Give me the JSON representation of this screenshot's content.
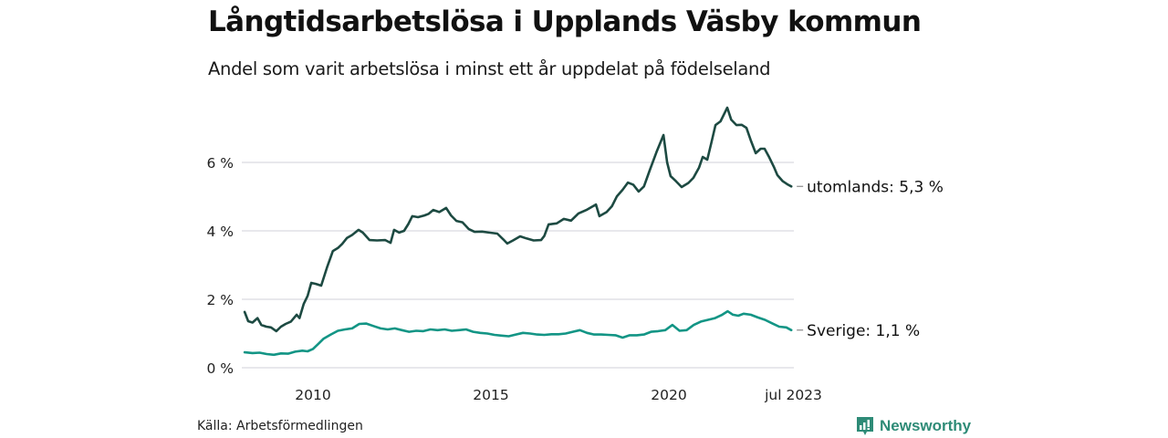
{
  "header": {
    "title": "Långtidsarbetslösa i Upplands Väsby kommun",
    "subtitle": "Andel som varit arbetslösa i minst ett år uppdelat på födelseland"
  },
  "footer": {
    "source": "Källa: Arbetsförmedlingen",
    "brand": "Newsworthy"
  },
  "colors": {
    "utomlands": "#1d4a42",
    "sverige": "#139585",
    "grid": "#e1e1e6",
    "brand": "#2e8b77"
  },
  "chart_data": {
    "type": "line",
    "title": "Långtidsarbetslösa i Upplands Väsby kommun",
    "subtitle": "Andel som varit arbetslösa i minst ett år uppdelat på födelseland",
    "xlabel": "",
    "ylabel": "",
    "xlim": [
      2008.0,
      2023.5
    ],
    "ylim": [
      0,
      7.7
    ],
    "grid": true,
    "y_ticks": [
      {
        "value": 0,
        "label": "0 %"
      },
      {
        "value": 2,
        "label": "2 %"
      },
      {
        "value": 4,
        "label": "4 %"
      },
      {
        "value": 6,
        "label": "6 %"
      }
    ],
    "x_ticks": [
      {
        "value": 2010.0,
        "label": "2010"
      },
      {
        "value": 2015.0,
        "label": "2015"
      },
      {
        "value": 2020.0,
        "label": "2020"
      },
      {
        "value": 2023.5,
        "label": "jul 2023"
      }
    ],
    "legend": "end-of-line labels",
    "series": [
      {
        "name": "utomlands",
        "end_label": "utomlands: 5,3 %",
        "x": [
          2008.08,
          2008.18,
          2008.3,
          2008.44,
          2008.55,
          2008.69,
          2008.82,
          2008.97,
          2009.1,
          2009.23,
          2009.38,
          2009.54,
          2009.62,
          2009.74,
          2009.85,
          2009.95,
          2010.08,
          2010.23,
          2010.4,
          2010.56,
          2010.7,
          2010.82,
          2010.95,
          2011.1,
          2011.28,
          2011.4,
          2011.59,
          2011.8,
          2012.03,
          2012.18,
          2012.28,
          2012.42,
          2012.56,
          2012.68,
          2012.79,
          2012.95,
          2013.13,
          2013.25,
          2013.38,
          2013.55,
          2013.74,
          2013.88,
          2014.03,
          2014.2,
          2014.38,
          2014.54,
          2014.75,
          2014.95,
          2015.18,
          2015.35,
          2015.46,
          2015.62,
          2015.82,
          2016.0,
          2016.2,
          2016.41,
          2016.5,
          2016.62,
          2016.85,
          2017.05,
          2017.25,
          2017.46,
          2017.7,
          2017.95,
          2018.05,
          2018.25,
          2018.4,
          2018.54,
          2018.7,
          2018.85,
          2019.0,
          2019.15,
          2019.3,
          2019.46,
          2019.65,
          2019.85,
          2019.95,
          2020.05,
          2020.2,
          2020.36,
          2020.55,
          2020.69,
          2020.85,
          2020.95,
          2021.08,
          2021.2,
          2021.31,
          2021.45,
          2021.64,
          2021.75,
          2021.9,
          2022.05,
          2022.18,
          2022.3,
          2022.44,
          2022.58,
          2022.69,
          2022.82,
          2022.95,
          2023.05,
          2023.2,
          2023.35,
          2023.44
        ],
        "values": [
          1.63,
          1.36,
          1.32,
          1.45,
          1.25,
          1.2,
          1.18,
          1.07,
          1.2,
          1.28,
          1.35,
          1.55,
          1.45,
          1.87,
          2.1,
          2.48,
          2.45,
          2.4,
          2.95,
          3.41,
          3.5,
          3.62,
          3.79,
          3.88,
          4.03,
          3.95,
          3.73,
          3.72,
          3.73,
          3.65,
          4.03,
          3.95,
          4.0,
          4.2,
          4.43,
          4.4,
          4.45,
          4.5,
          4.61,
          4.55,
          4.67,
          4.45,
          4.29,
          4.25,
          4.05,
          3.97,
          3.98,
          3.95,
          3.92,
          3.75,
          3.63,
          3.72,
          3.84,
          3.78,
          3.72,
          3.73,
          3.85,
          4.19,
          4.22,
          4.35,
          4.3,
          4.51,
          4.62,
          4.77,
          4.43,
          4.55,
          4.72,
          5.01,
          5.2,
          5.41,
          5.35,
          5.15,
          5.3,
          5.76,
          6.3,
          6.8,
          6.0,
          5.6,
          5.45,
          5.28,
          5.4,
          5.55,
          5.85,
          6.16,
          6.08,
          6.6,
          7.09,
          7.2,
          7.6,
          7.25,
          7.09,
          7.1,
          7.01,
          6.65,
          6.27,
          6.4,
          6.4,
          6.15,
          5.87,
          5.63,
          5.45,
          5.35,
          5.3
        ]
      },
      {
        "name": "Sverige",
        "end_label": "Sverige: 1,1 %",
        "x": [
          2008.08,
          2008.3,
          2008.5,
          2008.7,
          2008.9,
          2009.1,
          2009.3,
          2009.5,
          2009.7,
          2009.85,
          2010.0,
          2010.15,
          2010.3,
          2010.5,
          2010.7,
          2010.9,
          2011.1,
          2011.3,
          2011.5,
          2011.7,
          2011.9,
          2012.1,
          2012.3,
          2012.5,
          2012.7,
          2012.9,
          2013.1,
          2013.3,
          2013.5,
          2013.7,
          2013.9,
          2014.1,
          2014.3,
          2014.5,
          2014.7,
          2014.9,
          2015.1,
          2015.3,
          2015.5,
          2015.7,
          2015.9,
          2016.1,
          2016.3,
          2016.5,
          2016.7,
          2016.9,
          2017.1,
          2017.3,
          2017.5,
          2017.7,
          2017.9,
          2018.1,
          2018.3,
          2018.5,
          2018.7,
          2018.9,
          2019.1,
          2019.3,
          2019.5,
          2019.7,
          2019.9,
          2020.1,
          2020.3,
          2020.5,
          2020.7,
          2020.9,
          2021.1,
          2021.3,
          2021.5,
          2021.65,
          2021.8,
          2021.95,
          2022.1,
          2022.3,
          2022.5,
          2022.7,
          2022.9,
          2023.1,
          2023.3,
          2023.44
        ],
        "values": [
          0.45,
          0.43,
          0.44,
          0.4,
          0.38,
          0.42,
          0.41,
          0.47,
          0.5,
          0.48,
          0.55,
          0.7,
          0.85,
          0.97,
          1.08,
          1.12,
          1.15,
          1.28,
          1.29,
          1.22,
          1.15,
          1.12,
          1.15,
          1.1,
          1.05,
          1.08,
          1.07,
          1.12,
          1.1,
          1.12,
          1.08,
          1.1,
          1.12,
          1.05,
          1.02,
          1.0,
          0.96,
          0.94,
          0.92,
          0.97,
          1.02,
          1.0,
          0.97,
          0.96,
          0.98,
          0.98,
          1.0,
          1.05,
          1.1,
          1.02,
          0.97,
          0.97,
          0.96,
          0.95,
          0.88,
          0.95,
          0.95,
          0.97,
          1.05,
          1.07,
          1.1,
          1.25,
          1.08,
          1.1,
          1.25,
          1.35,
          1.4,
          1.45,
          1.55,
          1.65,
          1.55,
          1.52,
          1.58,
          1.55,
          1.47,
          1.4,
          1.3,
          1.2,
          1.18,
          1.1
        ]
      }
    ]
  }
}
